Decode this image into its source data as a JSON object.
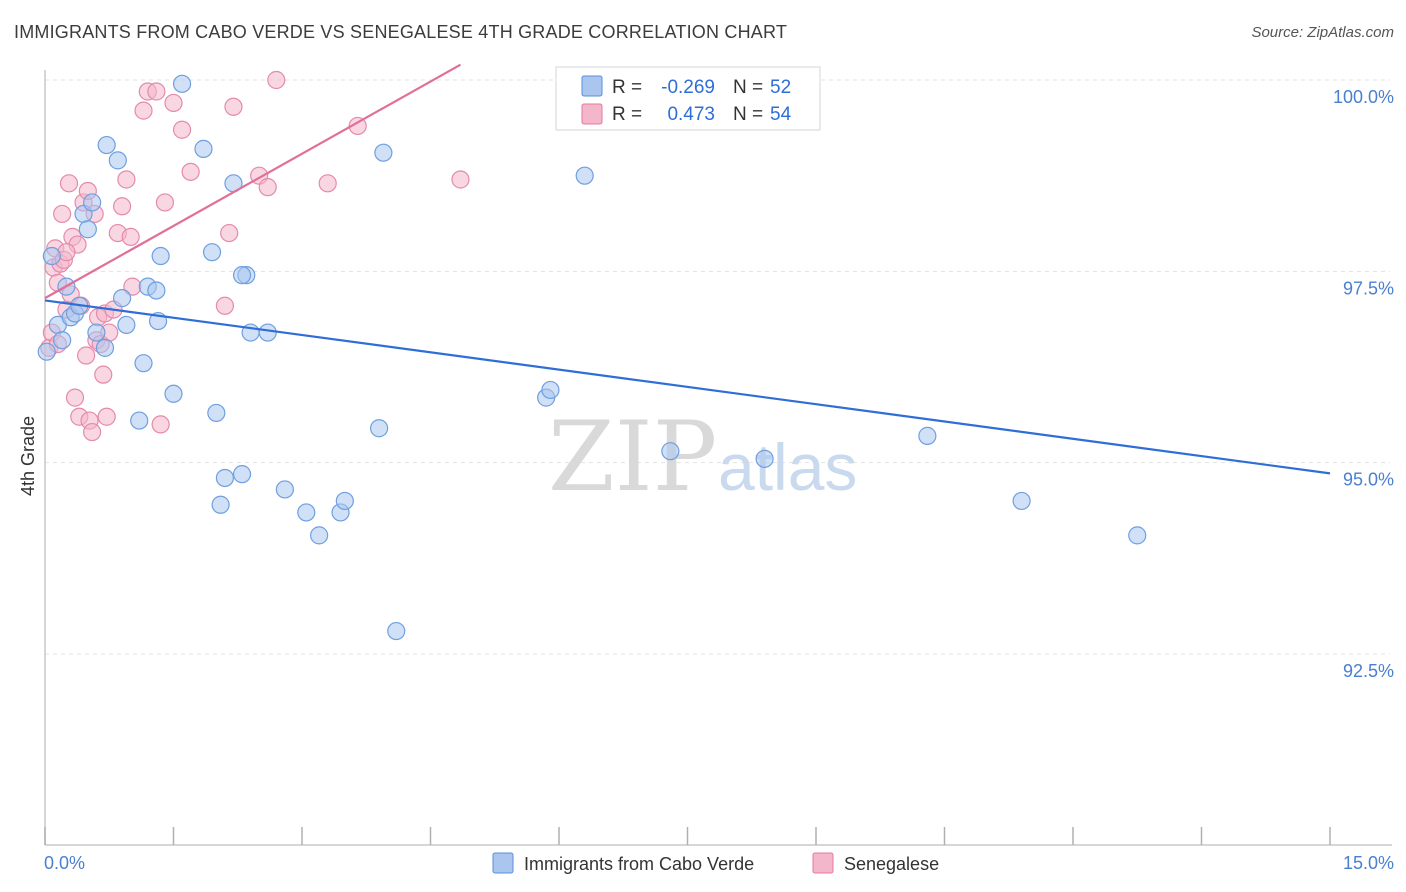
{
  "title": "IMMIGRANTS FROM CABO VERDE VS SENEGALESE 4TH GRADE CORRELATION CHART",
  "source": "Source: ZipAtlas.com",
  "watermark": {
    "zip": "ZIP",
    "atlas": "atlas"
  },
  "colors": {
    "blue": "#2e6ed6",
    "blue_fill": "#aac6ee",
    "pink": "#e06f99",
    "pink_fill": "#f4b6ca",
    "grid": "#e3e3e3"
  },
  "legend": {
    "r_label": "R =",
    "n_label": "N =",
    "series": [
      {
        "r": "-0.269",
        "n": "52"
      },
      {
        "r": "0.473",
        "n": "54"
      }
    ]
  },
  "chart_data": {
    "type": "scatter",
    "title": "IMMIGRANTS FROM CABO VERDE VS SENEGALESE 4TH GRADE CORRELATION CHART",
    "xlabel": "",
    "ylabel": "4th Grade",
    "xlim": [
      0,
      15
    ],
    "ylim": [
      90,
      100.2
    ],
    "x_tick_labels": [
      "0.0%",
      "15.0%"
    ],
    "y_ticks": [
      92.5,
      95.0,
      97.5,
      100.0
    ],
    "y_tick_labels": [
      "92.5%",
      "95.0%",
      "97.5%",
      "100.0%"
    ],
    "grid": true,
    "series": [
      {
        "name": "Immigrants from Cabo Verde",
        "r": -0.269,
        "n": 52,
        "trend": [
          [
            0,
            97.12
          ],
          [
            15,
            94.86
          ]
        ],
        "points": [
          [
            0.02,
            96.45
          ],
          [
            0.08,
            97.7
          ],
          [
            0.15,
            96.8
          ],
          [
            0.2,
            96.6
          ],
          [
            0.25,
            97.3
          ],
          [
            0.3,
            96.9
          ],
          [
            0.35,
            96.95
          ],
          [
            0.4,
            97.05
          ],
          [
            0.45,
            98.25
          ],
          [
            0.5,
            98.05
          ],
          [
            0.55,
            98.4
          ],
          [
            0.6,
            96.7
          ],
          [
            0.7,
            96.5
          ],
          [
            0.72,
            99.15
          ],
          [
            0.85,
            98.95
          ],
          [
            0.9,
            97.15
          ],
          [
            0.95,
            96.8
          ],
          [
            1.1,
            95.55
          ],
          [
            1.15,
            96.3
          ],
          [
            1.2,
            97.3
          ],
          [
            1.3,
            97.25
          ],
          [
            1.32,
            96.85
          ],
          [
            1.35,
            97.7
          ],
          [
            1.5,
            95.9
          ],
          [
            1.6,
            99.95
          ],
          [
            1.85,
            99.1
          ],
          [
            1.95,
            97.75
          ],
          [
            2.0,
            95.65
          ],
          [
            2.05,
            94.45
          ],
          [
            2.1,
            94.8
          ],
          [
            2.2,
            98.65
          ],
          [
            2.35,
            97.45
          ],
          [
            2.3,
            94.85
          ],
          [
            2.3,
            97.45
          ],
          [
            2.4,
            96.7
          ],
          [
            2.6,
            96.7
          ],
          [
            2.8,
            94.65
          ],
          [
            3.05,
            94.35
          ],
          [
            3.2,
            94.05
          ],
          [
            3.45,
            94.35
          ],
          [
            3.5,
            94.5
          ],
          [
            3.9,
            95.45
          ],
          [
            3.95,
            99.05
          ],
          [
            4.1,
            92.8
          ],
          [
            5.85,
            95.85
          ],
          [
            5.9,
            95.95
          ],
          [
            6.3,
            98.75
          ],
          [
            7.3,
            95.15
          ],
          [
            8.4,
            95.05
          ],
          [
            10.3,
            95.35
          ],
          [
            11.4,
            94.5
          ],
          [
            12.75,
            94.05
          ]
        ]
      },
      {
        "name": "Senegalese",
        "r": 0.473,
        "n": 54,
        "trend": [
          [
            0,
            97.15
          ],
          [
            4.85,
            100.2
          ]
        ],
        "points": [
          [
            0.05,
            96.5
          ],
          [
            0.08,
            96.7
          ],
          [
            0.1,
            97.55
          ],
          [
            0.12,
            97.8
          ],
          [
            0.15,
            97.35
          ],
          [
            0.18,
            97.6
          ],
          [
            0.2,
            98.25
          ],
          [
            0.22,
            97.65
          ],
          [
            0.25,
            97.0
          ],
          [
            0.28,
            98.65
          ],
          [
            0.3,
            97.2
          ],
          [
            0.32,
            97.95
          ],
          [
            0.35,
            95.85
          ],
          [
            0.38,
            97.85
          ],
          [
            0.4,
            95.6
          ],
          [
            0.45,
            98.4
          ],
          [
            0.5,
            98.55
          ],
          [
            0.52,
            95.55
          ],
          [
            0.55,
            95.4
          ],
          [
            0.58,
            98.25
          ],
          [
            0.6,
            96.6
          ],
          [
            0.62,
            96.9
          ],
          [
            0.65,
            96.55
          ],
          [
            0.68,
            96.15
          ],
          [
            0.7,
            96.95
          ],
          [
            0.72,
            95.6
          ],
          [
            0.75,
            96.7
          ],
          [
            0.8,
            97.0
          ],
          [
            0.85,
            98.0
          ],
          [
            0.9,
            98.35
          ],
          [
            0.95,
            98.7
          ],
          [
            1.0,
            97.95
          ],
          [
            1.02,
            97.3
          ],
          [
            1.15,
            99.6
          ],
          [
            1.2,
            99.85
          ],
          [
            1.3,
            99.85
          ],
          [
            1.35,
            95.5
          ],
          [
            1.4,
            98.4
          ],
          [
            1.5,
            99.7
          ],
          [
            1.6,
            99.35
          ],
          [
            1.7,
            98.8
          ],
          [
            2.1,
            97.05
          ],
          [
            2.15,
            98.0
          ],
          [
            2.2,
            99.65
          ],
          [
            2.5,
            98.75
          ],
          [
            2.6,
            98.6
          ],
          [
            2.7,
            100.0
          ],
          [
            3.3,
            98.65
          ],
          [
            3.65,
            99.4
          ],
          [
            4.85,
            98.7
          ],
          [
            0.42,
            97.05
          ],
          [
            0.48,
            96.4
          ],
          [
            0.15,
            96.55
          ],
          [
            0.25,
            97.75
          ]
        ]
      }
    ]
  }
}
